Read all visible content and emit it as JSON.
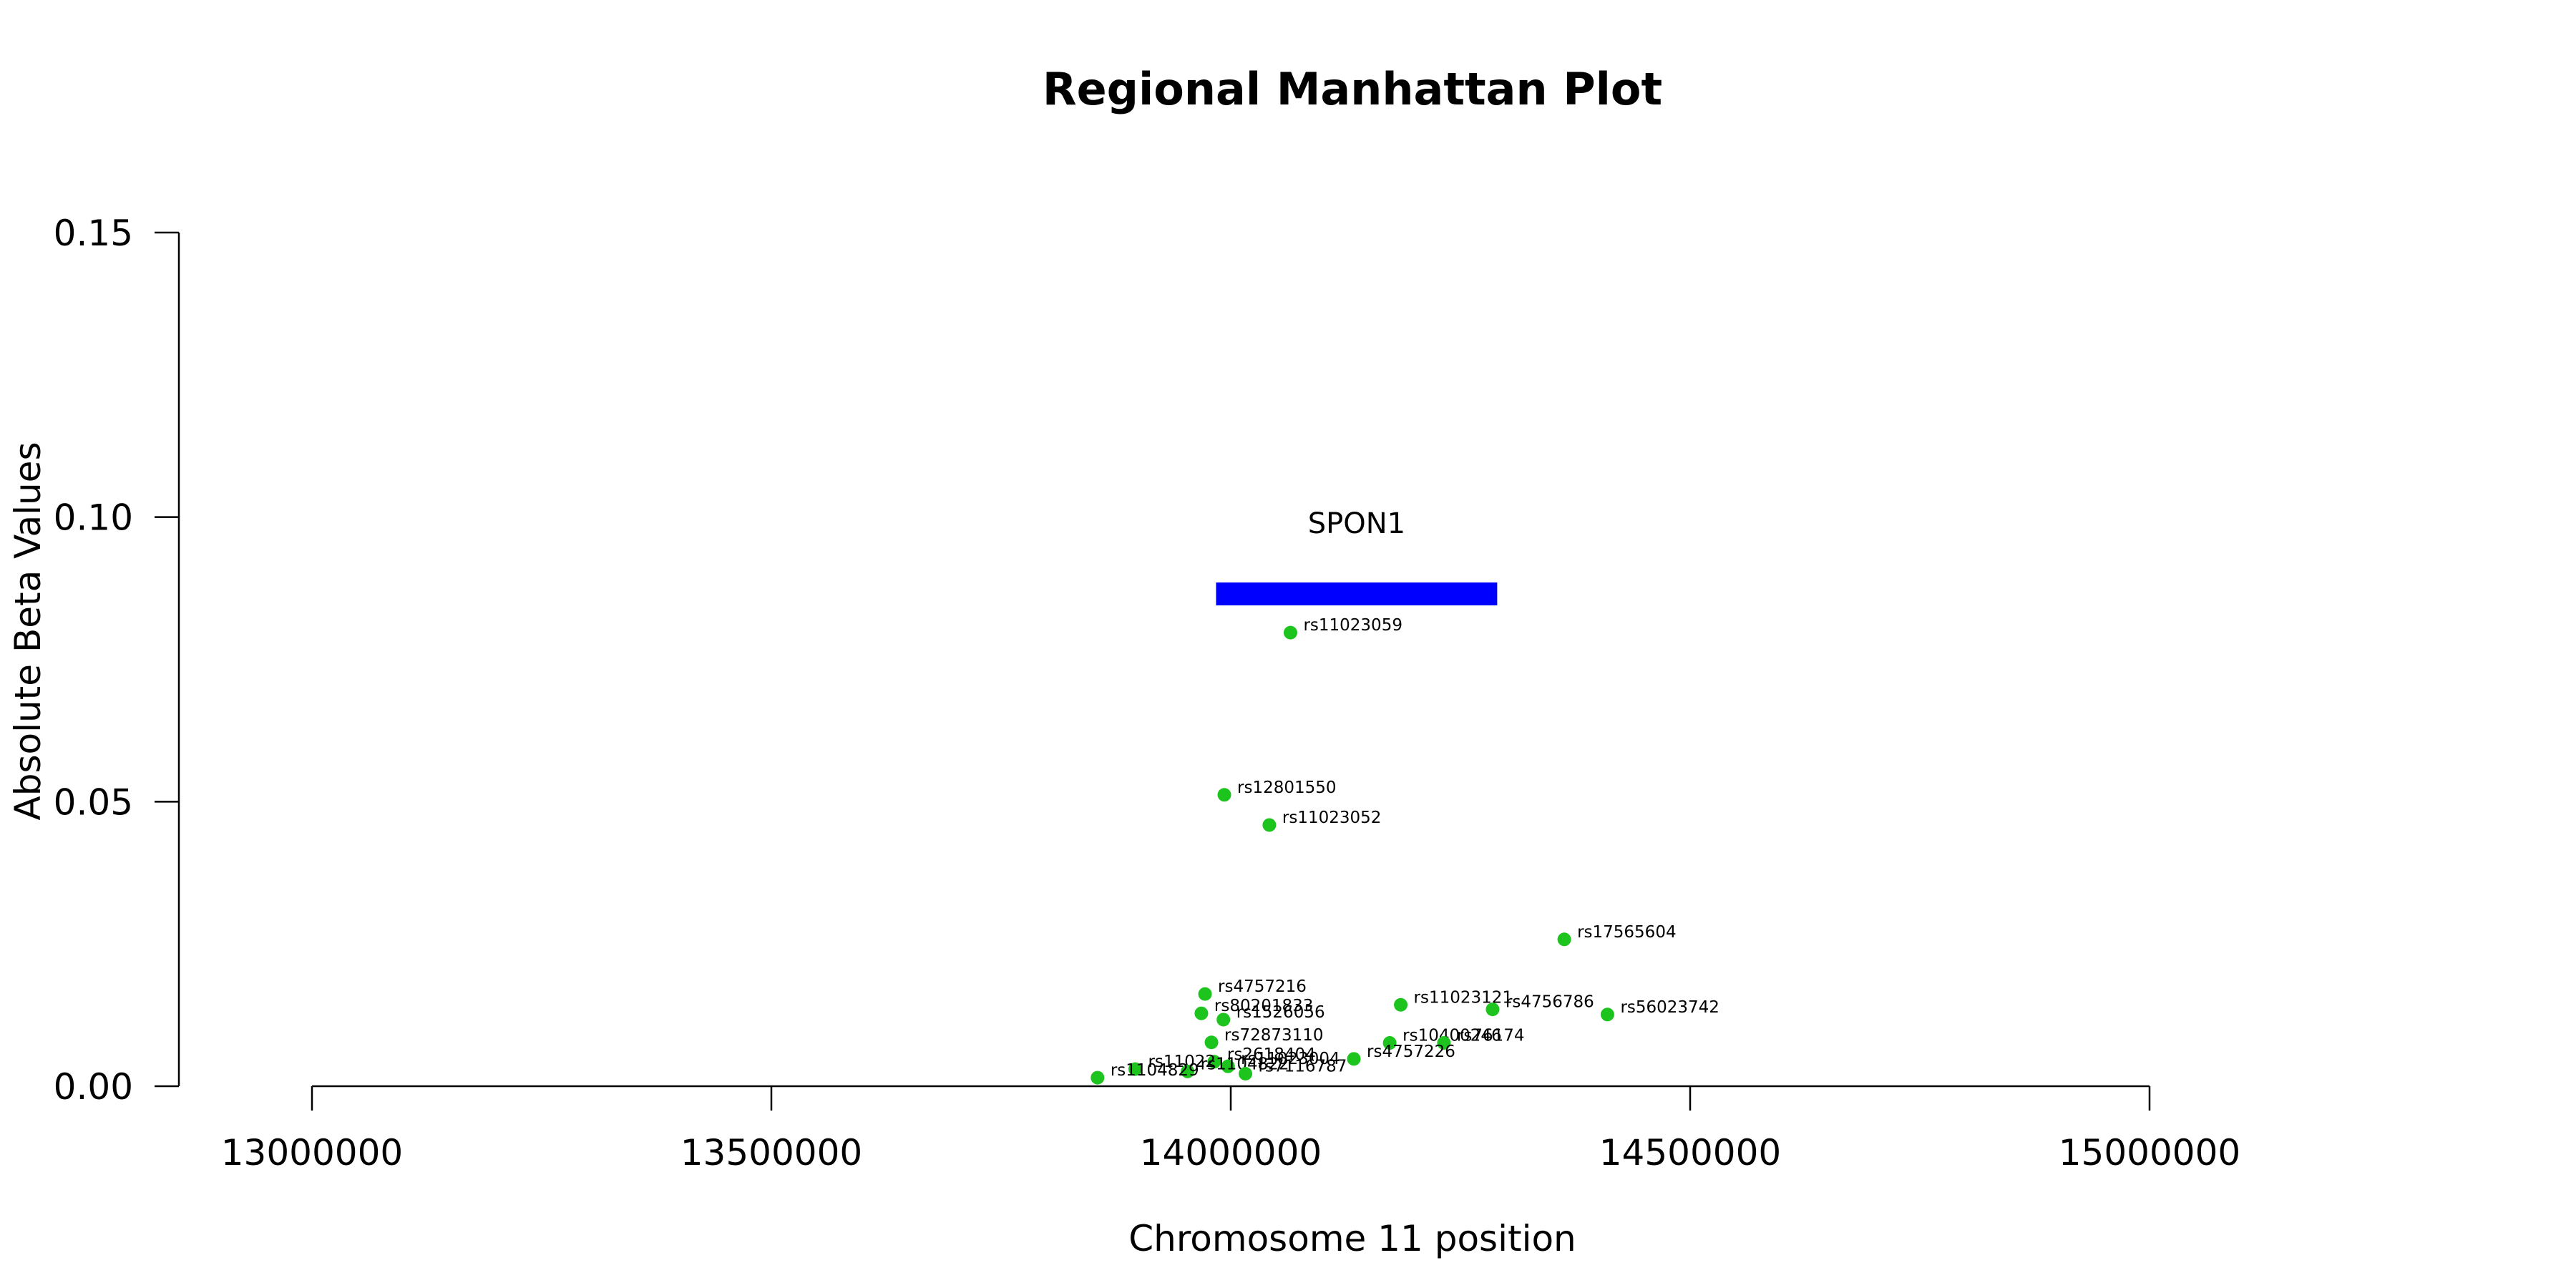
{
  "chart_data": {
    "type": "scatter",
    "title": "Regional Manhattan Plot",
    "xlabel": "Chromosome 11 position",
    "ylabel": "Absolute Beta Values",
    "xlim": [
      13000000,
      15000000
    ],
    "ylim": [
      0,
      0.15
    ],
    "x_ticks": [
      13000000,
      13500000,
      14000000,
      14500000,
      15000000
    ],
    "x_tick_labels": [
      "13000000",
      "13500000",
      "14000000",
      "14500000",
      "15000000"
    ],
    "y_ticks": [
      0,
      0.05,
      0.1,
      0.15
    ],
    "y_tick_labels": [
      "0.00",
      "0.05",
      "0.10",
      "0.15"
    ],
    "grid": false,
    "point_color": "#1ec41e",
    "gene": {
      "name": "SPON1",
      "start": 13984000,
      "end": 14290000,
      "y": 0.0865,
      "color": "#0000ff"
    },
    "points": [
      {
        "id": "rs11023059",
        "x": 14065000,
        "y": 0.0797
      },
      {
        "id": "rs12801550",
        "x": 13993000,
        "y": 0.0512
      },
      {
        "id": "rs11023052",
        "x": 14042000,
        "y": 0.0459
      },
      {
        "id": "rs17565604",
        "x": 14363000,
        "y": 0.0258
      },
      {
        "id": "rs4757216",
        "x": 13972000,
        "y": 0.0162
      },
      {
        "id": "rs11023121",
        "x": 14185000,
        "y": 0.0143
      },
      {
        "id": "rs4756786",
        "x": 14285000,
        "y": 0.0135
      },
      {
        "id": "rs56023742",
        "x": 14410000,
        "y": 0.0126
      },
      {
        "id": "rs80201833",
        "x": 13968000,
        "y": 0.0128
      },
      {
        "id": "rs1526056",
        "x": 13992000,
        "y": 0.0117
      },
      {
        "id": "rs72873110",
        "x": 13979000,
        "y": 0.0077
      },
      {
        "id": "rs10400246",
        "x": 14173000,
        "y": 0.0076
      },
      {
        "id": "rs76174",
        "x": 14232000,
        "y": 0.0076
      },
      {
        "id": "rs4757226",
        "x": 14134000,
        "y": 0.0048
      },
      {
        "id": "rs2618404",
        "x": 13982000,
        "y": 0.0043
      },
      {
        "id": "rs11023004",
        "x": 13997000,
        "y": 0.0035
      },
      {
        "id": "rs11022",
        "x": 13896000,
        "y": 0.003
      },
      {
        "id": "rs1104822",
        "x": 13953000,
        "y": 0.0026
      },
      {
        "id": "rs7116787",
        "x": 14016000,
        "y": 0.0022
      },
      {
        "id": "rs1104829",
        "x": 13855000,
        "y": 0.0015
      }
    ]
  }
}
